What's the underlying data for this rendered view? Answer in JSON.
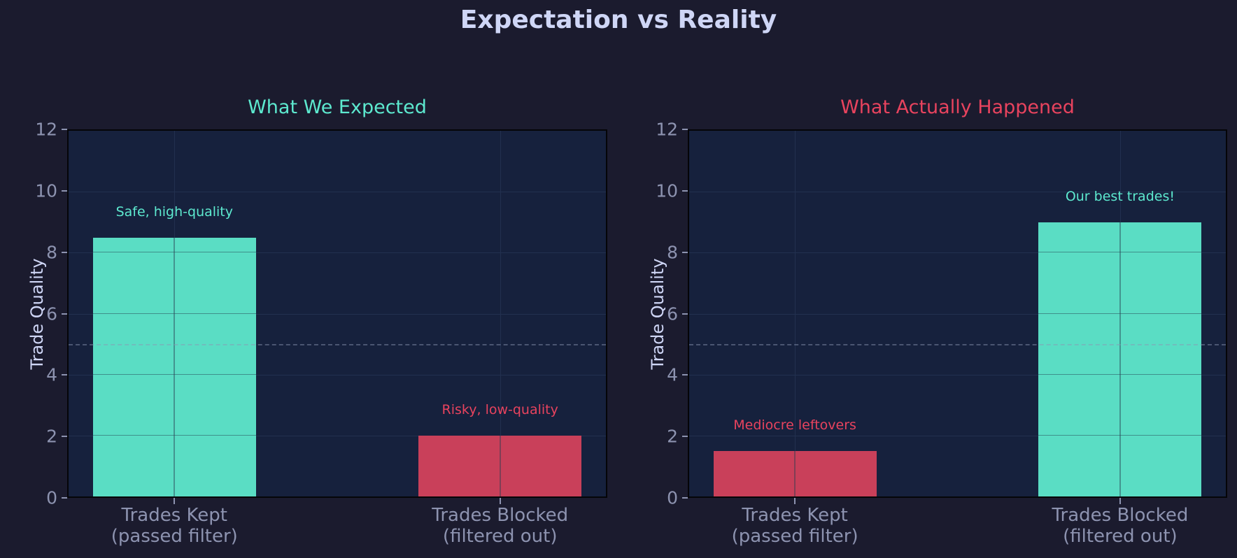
{
  "figure": {
    "title": "Expectation vs Reality",
    "background": "#1b1b2e",
    "axes_background": "#16213d"
  },
  "colors": {
    "good": "#5addc4",
    "bad": "#c9405a",
    "title_good": "#5de9cf",
    "title_bad": "#e8435e",
    "tick": "#8d93b0",
    "label": "#cfd6f6"
  },
  "panels": [
    {
      "title": "What We Expected",
      "title_color": "#5de9cf",
      "ylabel": "Trade Quality",
      "yticks": [
        "0",
        "2",
        "4",
        "6",
        "8",
        "10",
        "12"
      ],
      "categories": [
        {
          "line1": "Trades Kept",
          "line2": "(passed filter)"
        },
        {
          "line1": "Trades Blocked",
          "line2": "(filtered out)"
        }
      ],
      "bars": [
        {
          "value": 8.5,
          "color": "#5addc4",
          "annotation": "Safe, high-quality",
          "annotation_color": "#5de9cf"
        },
        {
          "value": 2.0,
          "color": "#c9405a",
          "annotation": "Risky, low-quality",
          "annotation_color": "#e8435e"
        }
      ]
    },
    {
      "title": "What Actually Happened",
      "title_color": "#e8435e",
      "ylabel": "Trade Quality",
      "yticks": [
        "0",
        "2",
        "4",
        "6",
        "8",
        "10",
        "12"
      ],
      "categories": [
        {
          "line1": "Trades Kept",
          "line2": "(passed filter)"
        },
        {
          "line1": "Trades Blocked",
          "line2": "(filtered out)"
        }
      ],
      "bars": [
        {
          "value": 1.5,
          "color": "#c9405a",
          "annotation": "Mediocre leftovers",
          "annotation_color": "#e8435e"
        },
        {
          "value": 9.0,
          "color": "#5addc4",
          "annotation": "Our best trades!",
          "annotation_color": "#5de9cf"
        }
      ]
    }
  ],
  "chart_data": [
    {
      "type": "bar",
      "title": "What We Expected",
      "categories": [
        "Trades Kept\n(passed filter)",
        "Trades Blocked\n(filtered out)"
      ],
      "values": [
        8.5,
        2.0
      ],
      "bar_colors": [
        "#5addc4",
        "#c9405a"
      ],
      "annotations": [
        "Safe, high-quality",
        "Risky, low-quality"
      ],
      "xlabel": "",
      "ylabel": "Trade Quality",
      "ylim": [
        0,
        12
      ],
      "yticks": [
        0,
        2,
        4,
        6,
        8,
        10,
        12
      ],
      "reference_line": {
        "y": 5,
        "style": "dashed"
      },
      "grid": true,
      "legend": null
    },
    {
      "type": "bar",
      "title": "What Actually Happened",
      "categories": [
        "Trades Kept\n(passed filter)",
        "Trades Blocked\n(filtered out)"
      ],
      "values": [
        1.5,
        9.0
      ],
      "bar_colors": [
        "#c9405a",
        "#5addc4"
      ],
      "annotations": [
        "Mediocre leftovers",
        "Our best trades!"
      ],
      "xlabel": "",
      "ylabel": "Trade Quality",
      "ylim": [
        0,
        12
      ],
      "yticks": [
        0,
        2,
        4,
        6,
        8,
        10,
        12
      ],
      "reference_line": {
        "y": 5,
        "style": "dashed"
      },
      "grid": true,
      "legend": null
    }
  ],
  "suptitle": "Expectation vs Reality"
}
